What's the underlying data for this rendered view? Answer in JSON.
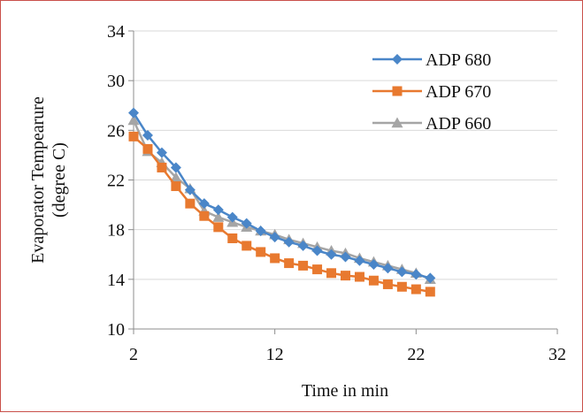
{
  "chart_data": {
    "type": "line",
    "title": "",
    "xlabel": "Time in min",
    "ylabel_lines": [
      "Evaporator Tempearure",
      "(degree C)"
    ],
    "xlim": [
      2,
      32
    ],
    "ylim": [
      10,
      34
    ],
    "xticks": [
      "2",
      "12",
      "22",
      "32"
    ],
    "yticks": [
      "10",
      "14",
      "18",
      "22",
      "26",
      "30",
      "34"
    ],
    "grid": "horizontal",
    "legend_position": "top-right",
    "x": [
      2,
      3,
      4,
      5,
      6,
      7,
      8,
      9,
      10,
      11,
      12,
      13,
      14,
      15,
      16,
      17,
      18,
      19,
      20,
      21,
      22,
      23
    ],
    "series": [
      {
        "name": "ADP 680",
        "color": "#4a86c8",
        "marker": "diamond",
        "values": [
          27.4,
          25.6,
          24.2,
          23.0,
          21.2,
          20.1,
          19.6,
          19.0,
          18.5,
          17.9,
          17.4,
          17.0,
          16.7,
          16.3,
          16.0,
          15.8,
          15.5,
          15.2,
          14.9,
          14.6,
          14.4,
          14.1
        ]
      },
      {
        "name": "ADP 670",
        "color": "#e8792f",
        "marker": "square",
        "values": [
          25.5,
          24.5,
          23.0,
          21.5,
          20.1,
          19.1,
          18.2,
          17.3,
          16.7,
          16.2,
          15.7,
          15.3,
          15.1,
          14.8,
          14.5,
          14.3,
          14.2,
          13.9,
          13.6,
          13.4,
          13.2,
          13.0
        ]
      },
      {
        "name": "ADP 660",
        "color": "#a5a5a5",
        "marker": "triangle",
        "values": [
          26.8,
          24.3,
          23.4,
          22.2,
          21.3,
          19.5,
          19.0,
          18.6,
          18.2,
          17.9,
          17.6,
          17.2,
          16.9,
          16.6,
          16.3,
          16.1,
          15.7,
          15.4,
          15.1,
          14.8,
          14.5,
          14.0
        ]
      }
    ]
  }
}
